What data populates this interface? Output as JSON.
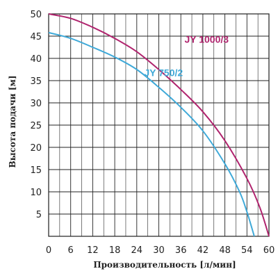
{
  "chart_data": {
    "type": "line",
    "title": "",
    "xlabel": "Производительность [л/мин]",
    "ylabel": "Высота подачи [м]",
    "xlim": [
      0,
      60
    ],
    "ylim": [
      0,
      50
    ],
    "x_ticks": [
      0,
      6,
      12,
      18,
      24,
      30,
      36,
      42,
      48,
      54,
      60
    ],
    "y_ticks": [
      5,
      10,
      15,
      20,
      25,
      30,
      35,
      40,
      45,
      50
    ],
    "grid": true,
    "series": [
      {
        "name": "JY 1000/3",
        "color": "#b0246e",
        "x": [
          0,
          6,
          12,
          18,
          24,
          30,
          36,
          42,
          48,
          54,
          57.5,
          60
        ],
        "y": [
          50,
          49,
          47,
          44.5,
          41.5,
          37.5,
          33,
          28,
          21.5,
          13,
          6.5,
          0
        ]
      },
      {
        "name": "JY 750/2",
        "color": "#3fa9d8",
        "x": [
          0,
          6,
          12,
          18,
          24,
          30,
          36,
          42,
          48,
          52,
          54,
          56
        ],
        "y": [
          45.8,
          44.5,
          42.5,
          40.3,
          37.5,
          33.5,
          29,
          23.7,
          16.3,
          10,
          5.5,
          0
        ]
      }
    ]
  }
}
